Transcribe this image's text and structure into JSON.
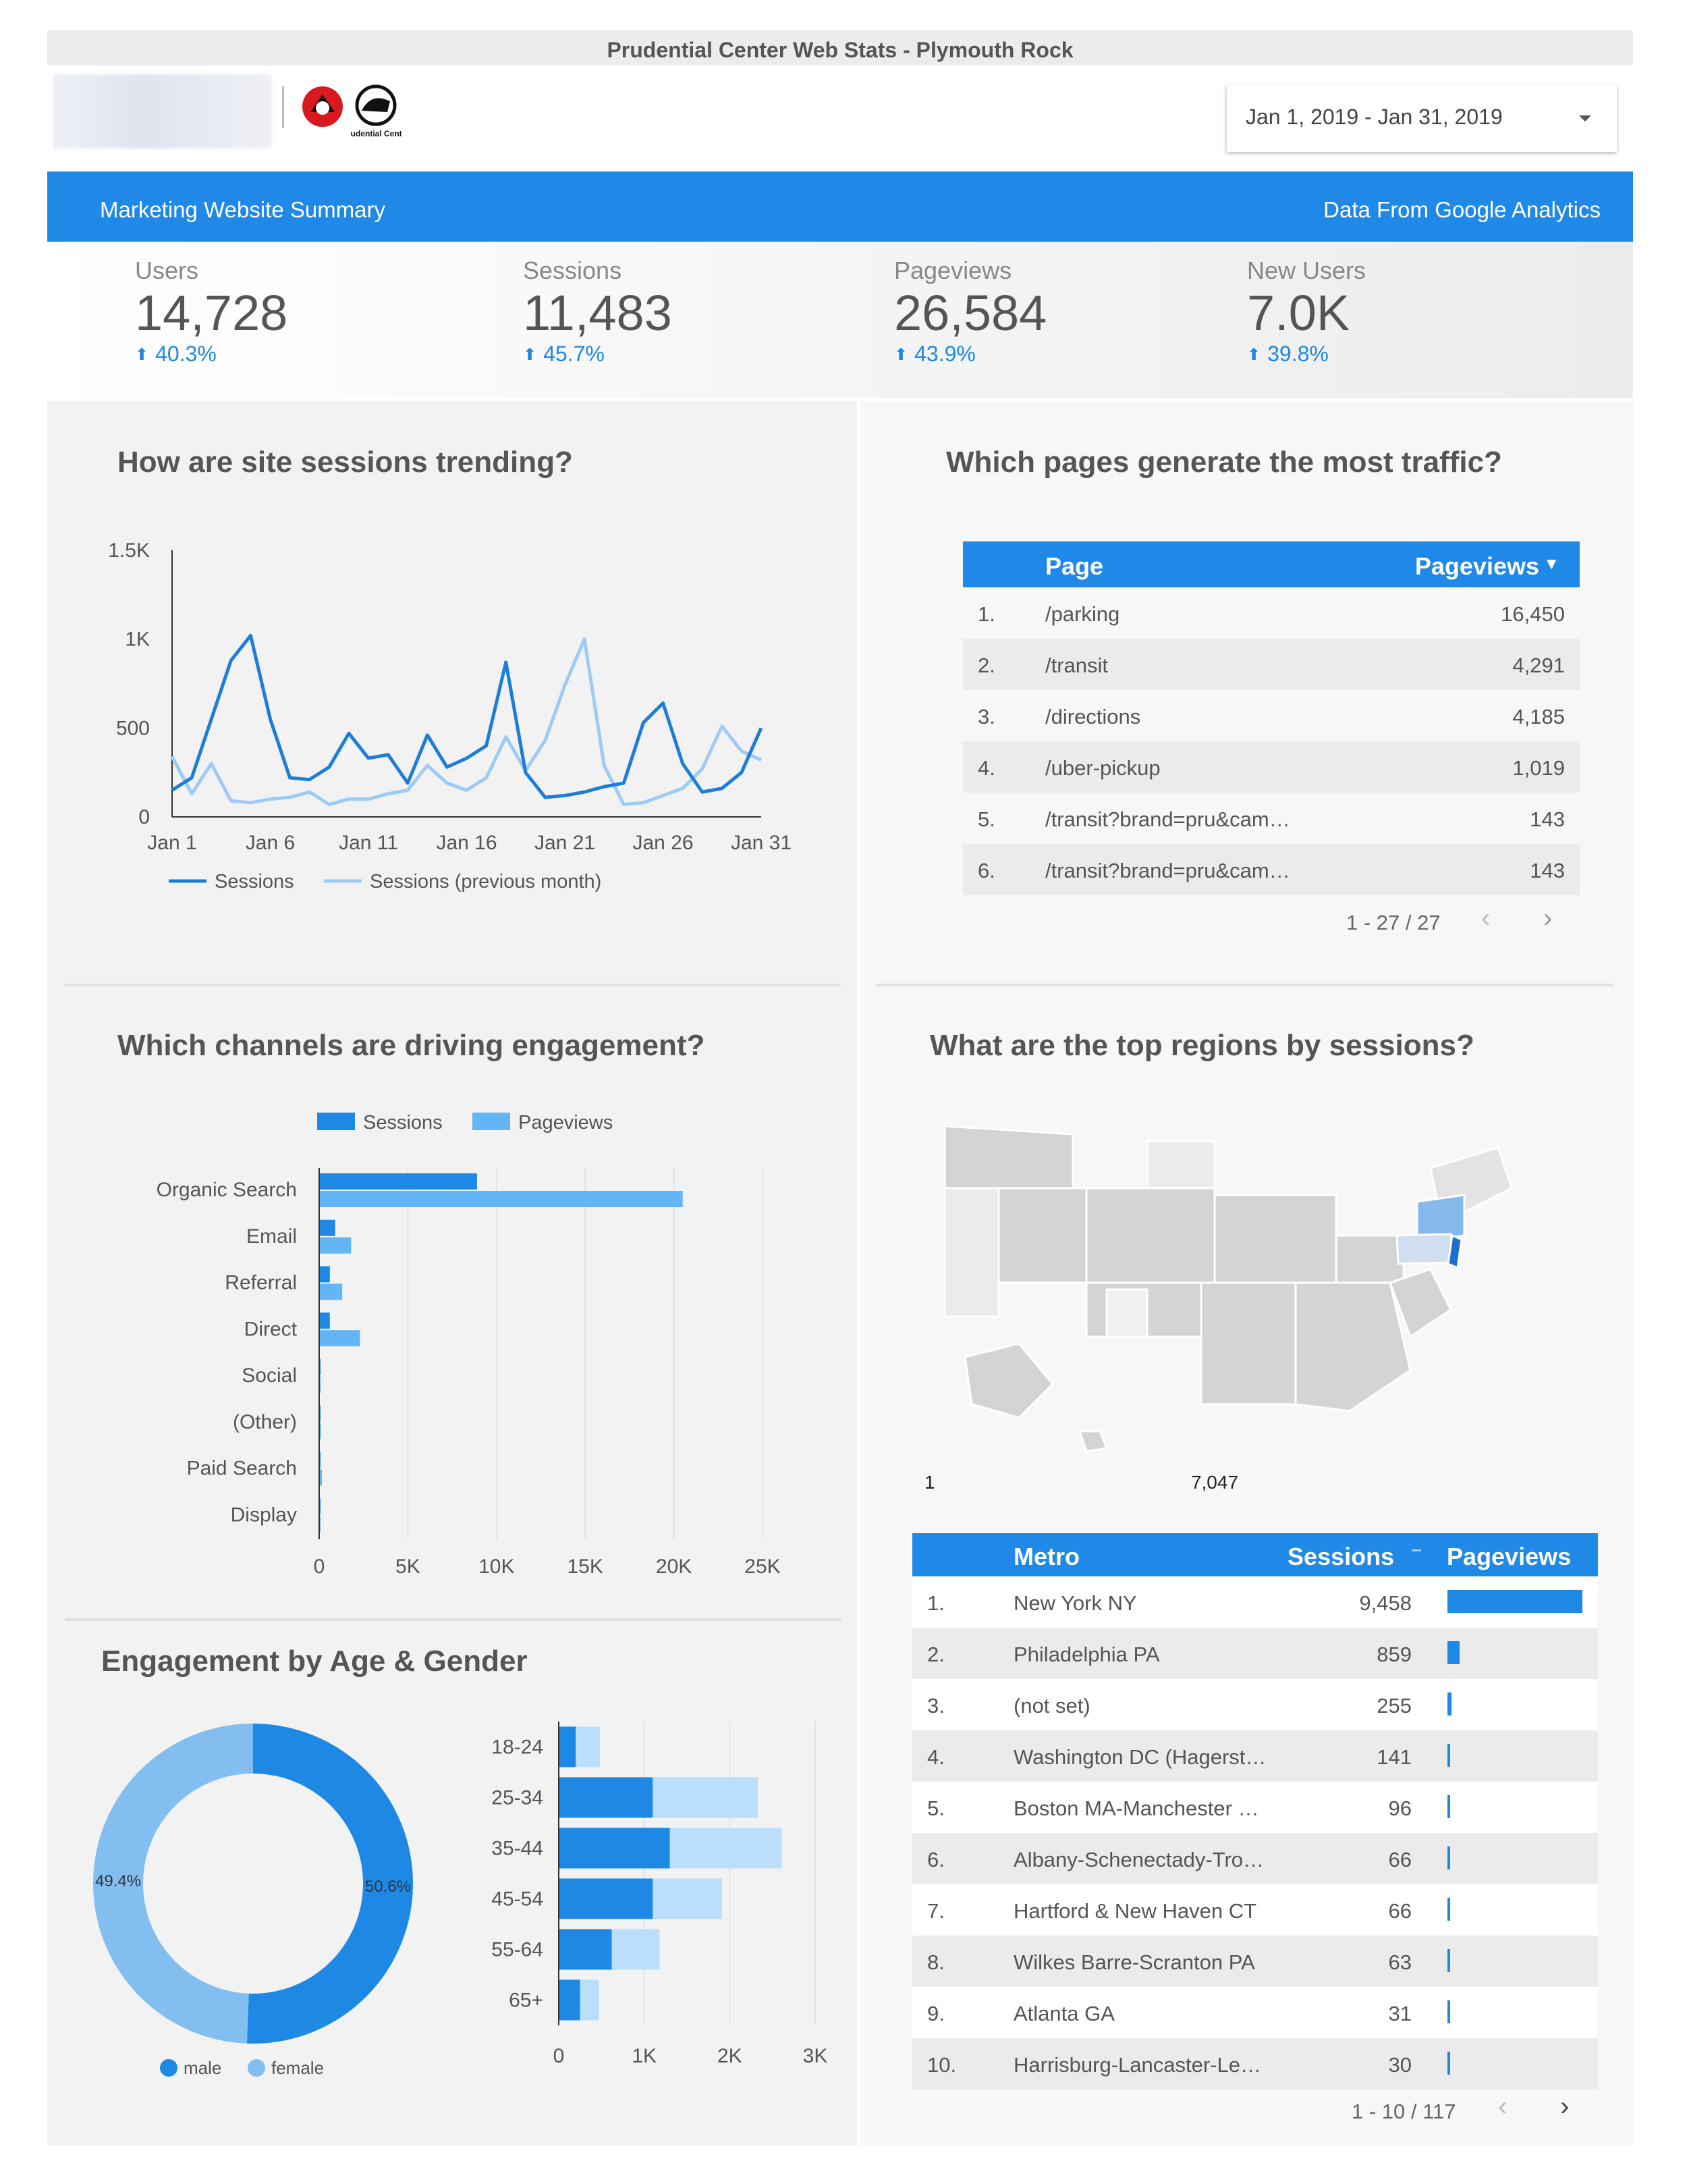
{
  "header": {
    "title": "Prudential Center Web Stats - Plymouth Rock",
    "date_range": "Jan 1, 2019 - Jan 31, 2019",
    "logo_text": "Prudential Center"
  },
  "banner": {
    "left": "Marketing Website Summary",
    "right": "Data From Google Analytics"
  },
  "kpis": [
    {
      "label": "Users",
      "value": "14,728",
      "change": "40.3%"
    },
    {
      "label": "Sessions",
      "value": "11,483",
      "change": "45.7%"
    },
    {
      "label": "Pageviews",
      "value": "26,584",
      "change": "43.9%"
    },
    {
      "label": "New Users",
      "value": "7.0K",
      "change": "39.8%"
    }
  ],
  "trend": {
    "title": "How are site sessions trending?",
    "chart_data": {
      "type": "line",
      "x": [
        "Jan 1",
        "Jan 2",
        "Jan 3",
        "Jan 4",
        "Jan 5",
        "Jan 6",
        "Jan 7",
        "Jan 8",
        "Jan 9",
        "Jan 10",
        "Jan 11",
        "Jan 12",
        "Jan 13",
        "Jan 14",
        "Jan 15",
        "Jan 16",
        "Jan 17",
        "Jan 18",
        "Jan 19",
        "Jan 20",
        "Jan 21",
        "Jan 22",
        "Jan 23",
        "Jan 24",
        "Jan 25",
        "Jan 26",
        "Jan 27",
        "Jan 28",
        "Jan 29",
        "Jan 30",
        "Jan 31"
      ],
      "xtick_labels": [
        "Jan 1",
        "Jan 6",
        "Jan 11",
        "Jan 16",
        "Jan 21",
        "Jan 26",
        "Jan 31"
      ],
      "ytick_labels": [
        "0",
        "500",
        "1K",
        "1.5K"
      ],
      "ylim": [
        0,
        1500
      ],
      "series": [
        {
          "name": "Sessions",
          "color": "#1e7dd6",
          "values": [
            150,
            220,
            550,
            880,
            1020,
            550,
            220,
            210,
            280,
            470,
            330,
            350,
            190,
            460,
            280,
            330,
            400,
            870,
            250,
            110,
            120,
            140,
            170,
            190,
            530,
            640,
            300,
            140,
            160,
            250,
            500
          ]
        },
        {
          "name": "Sessions (previous month)",
          "color": "#9ecbf5",
          "values": [
            340,
            130,
            300,
            90,
            80,
            100,
            110,
            140,
            70,
            100,
            100,
            130,
            150,
            290,
            190,
            150,
            220,
            450,
            260,
            430,
            740,
            1000,
            290,
            70,
            80,
            120,
            160,
            270,
            510,
            370,
            320
          ]
        }
      ]
    }
  },
  "pages": {
    "title": "Which pages generate the most traffic?",
    "col_page": "Page",
    "col_views": "Pageviews",
    "sort_icon": "▼",
    "rows": [
      {
        "n": "1.",
        "page": "/parking",
        "views": "16,450"
      },
      {
        "n": "2.",
        "page": "/transit",
        "views": "4,291"
      },
      {
        "n": "3.",
        "page": "/directions",
        "views": "4,185"
      },
      {
        "n": "4.",
        "page": "/uber-pickup",
        "views": "1,019"
      },
      {
        "n": "5.",
        "page": "/transit?brand=pru&cam…",
        "views": "143"
      },
      {
        "n": "6.",
        "page": "/transit?brand=pru&cam…",
        "views": "143"
      }
    ],
    "pager": "1 - 27 / 27"
  },
  "channels": {
    "title": "Which channels are driving engagement?",
    "chart_data": {
      "type": "bar",
      "orientation": "horizontal",
      "categories": [
        "Organic Search",
        "Email",
        "Referral",
        "Direct",
        "Social",
        "(Other)",
        "Paid Search",
        "Display"
      ],
      "series": [
        {
          "name": "Sessions",
          "color": "#1e88e5",
          "values": [
            8900,
            900,
            600,
            600,
            30,
            40,
            50,
            10
          ]
        },
        {
          "name": "Pageviews",
          "color": "#64b5f6",
          "values": [
            20500,
            1800,
            1300,
            2300,
            80,
            100,
            150,
            20
          ]
        }
      ],
      "xtick_labels": [
        "0",
        "5K",
        "10K",
        "15K",
        "20K",
        "25K"
      ],
      "xlim": [
        0,
        25000
      ]
    }
  },
  "regions": {
    "title": "What are the top regions by sessions?",
    "legend_min": "1",
    "legend_max": "7,047",
    "col_metro": "Metro",
    "col_sessions": "Sessions",
    "col_pageviews": "Pageviews",
    "rows": [
      {
        "n": "1.",
        "metro": "New York NY",
        "sessions": "9,458",
        "pv": 1.0
      },
      {
        "n": "2.",
        "metro": "Philadelphia PA",
        "sessions": "859",
        "pv": 0.09
      },
      {
        "n": "3.",
        "metro": "(not set)",
        "sessions": "255",
        "pv": 0.03
      },
      {
        "n": "4.",
        "metro": "Washington DC (Hagerst…",
        "sessions": "141",
        "pv": 0.015
      },
      {
        "n": "5.",
        "metro": "Boston MA-Manchester …",
        "sessions": "96",
        "pv": 0.01
      },
      {
        "n": "6.",
        "metro": "Albany-Schenectady-Tro…",
        "sessions": "66",
        "pv": 0.008
      },
      {
        "n": "7.",
        "metro": "Hartford & New Haven CT",
        "sessions": "66",
        "pv": 0.008
      },
      {
        "n": "8.",
        "metro": "Wilkes Barre-Scranton PA",
        "sessions": "63",
        "pv": 0.008
      },
      {
        "n": "9.",
        "metro": "Atlanta GA",
        "sessions": "31",
        "pv": 0.005
      },
      {
        "n": "10.",
        "metro": "Harrisburg-Lancaster-Le…",
        "sessions": "30",
        "pv": 0.005
      }
    ],
    "pager": "1 - 10 / 117"
  },
  "age_gender": {
    "title": "Engagement by Age & Gender",
    "donut": {
      "type": "pie",
      "slices": [
        {
          "name": "male",
          "value": 50.6,
          "label": "50.6%",
          "color": "#1e88e5"
        },
        {
          "name": "female",
          "value": 49.4,
          "label": "49.4%",
          "color": "#82bef0"
        }
      ]
    },
    "chart_data": {
      "type": "bar",
      "orientation": "horizontal",
      "stacked": true,
      "categories": [
        "18-24",
        "25-34",
        "35-44",
        "45-54",
        "55-64",
        "65+"
      ],
      "series": [
        {
          "name": "male",
          "color": "#1e88e5",
          "values": [
            200,
            1100,
            1300,
            1100,
            620,
            250
          ]
        },
        {
          "name": "female",
          "color": "#bbdefb",
          "values": [
            280,
            1230,
            1310,
            810,
            560,
            220
          ]
        }
      ],
      "xtick_labels": [
        "0",
        "1K",
        "2K",
        "3K"
      ],
      "xlim": [
        0,
        3000
      ]
    }
  }
}
